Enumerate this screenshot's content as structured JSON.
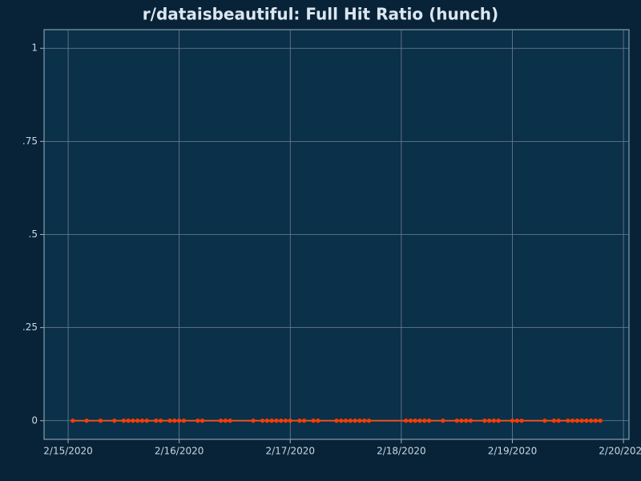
{
  "chart_data": {
    "type": "line",
    "title": "r/dataisbeautiful: Full Hit Ratio (hunch)",
    "series": [
      {
        "name": "Full Hit Ratio",
        "color": "#ff3c00",
        "line_color": "#e8501e",
        "x": [
          "2020-02-15T01:00",
          "2020-02-15T04:00",
          "2020-02-15T07:00",
          "2020-02-15T10:00",
          "2020-02-15T12:00",
          "2020-02-15T13:00",
          "2020-02-15T14:00",
          "2020-02-15T15:00",
          "2020-02-15T16:00",
          "2020-02-15T17:00",
          "2020-02-15T19:00",
          "2020-02-15T20:00",
          "2020-02-15T22:00",
          "2020-02-15T23:00",
          "2020-02-16T00:00",
          "2020-02-16T01:00",
          "2020-02-16T04:00",
          "2020-02-16T05:00",
          "2020-02-16T09:00",
          "2020-02-16T10:00",
          "2020-02-16T11:00",
          "2020-02-16T16:00",
          "2020-02-16T18:00",
          "2020-02-16T19:00",
          "2020-02-16T20:00",
          "2020-02-16T21:00",
          "2020-02-16T22:00",
          "2020-02-16T23:00",
          "2020-02-17T00:00",
          "2020-02-17T02:00",
          "2020-02-17T03:00",
          "2020-02-17T05:00",
          "2020-02-17T06:00",
          "2020-02-17T10:00",
          "2020-02-17T11:00",
          "2020-02-17T12:00",
          "2020-02-17T13:00",
          "2020-02-17T14:00",
          "2020-02-17T15:00",
          "2020-02-17T16:00",
          "2020-02-17T17:00",
          "2020-02-18T01:00",
          "2020-02-18T02:00",
          "2020-02-18T03:00",
          "2020-02-18T04:00",
          "2020-02-18T05:00",
          "2020-02-18T06:00",
          "2020-02-18T09:00",
          "2020-02-18T12:00",
          "2020-02-18T13:00",
          "2020-02-18T14:00",
          "2020-02-18T15:00",
          "2020-02-18T18:00",
          "2020-02-18T19:00",
          "2020-02-18T20:00",
          "2020-02-18T21:00",
          "2020-02-19T00:00",
          "2020-02-19T01:00",
          "2020-02-19T02:00",
          "2020-02-19T07:00",
          "2020-02-19T09:00",
          "2020-02-19T10:00",
          "2020-02-19T12:00",
          "2020-02-19T13:00",
          "2020-02-19T14:00",
          "2020-02-19T15:00",
          "2020-02-19T16:00",
          "2020-02-19T17:00",
          "2020-02-19T18:00",
          "2020-02-19T19:00"
        ],
        "values": [
          0,
          0,
          0,
          0,
          0,
          0,
          0,
          0,
          0,
          0,
          0,
          0,
          0,
          0,
          0,
          0,
          0,
          0,
          0,
          0,
          0,
          0,
          0,
          0,
          0,
          0,
          0,
          0,
          0,
          0,
          0,
          0,
          0,
          0,
          0,
          0,
          0,
          0,
          0,
          0,
          0,
          0,
          0,
          0,
          0,
          0,
          0,
          0,
          0,
          0,
          0,
          0,
          0,
          0,
          0,
          0,
          0,
          0,
          0,
          0,
          0,
          0,
          0,
          0,
          0,
          0,
          0,
          0,
          0,
          0
        ]
      }
    ],
    "xlim": [
      "2020-02-14T18:48",
      "2020-02-20T01:12"
    ],
    "xticks": [
      {
        "value": "2020-02-15T00:00",
        "label": "2/15/2020"
      },
      {
        "value": "2020-02-16T00:00",
        "label": "2/16/2020"
      },
      {
        "value": "2020-02-17T00:00",
        "label": "2/17/2020"
      },
      {
        "value": "2020-02-18T00:00",
        "label": "2/18/2020"
      },
      {
        "value": "2020-02-19T00:00",
        "label": "2/19/2020"
      },
      {
        "value": "2020-02-20T00:00",
        "label": "2/20/2020"
      }
    ],
    "ylim": [
      -0.05,
      1.05
    ],
    "yticks": [
      0,
      {
        "value": 0.25,
        "label": ".25"
      },
      {
        "value": 0.5,
        "label": ".5"
      },
      {
        "value": 0.75,
        "label": ".75"
      },
      1
    ],
    "grid": true
  }
}
